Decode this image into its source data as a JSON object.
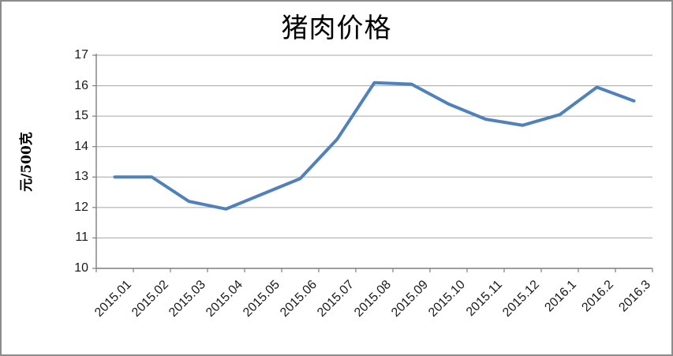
{
  "chart_data": {
    "type": "line",
    "title": "猪肉价格",
    "ylabel": "元/500克",
    "xlabel": "",
    "categories": [
      "2015.01",
      "2015.02",
      "2015.03",
      "2015.04",
      "2015.05",
      "2015.06",
      "2015.07",
      "2015.08",
      "2015.09",
      "2015.10",
      "2015.11",
      "2015.12",
      "2016.1",
      "2016.2",
      "2016.3"
    ],
    "values": [
      13.0,
      13.0,
      12.2,
      11.95,
      12.45,
      12.95,
      14.25,
      16.1,
      16.05,
      15.4,
      14.9,
      14.7,
      15.05,
      15.95,
      15.5
    ],
    "ylim": [
      10,
      17
    ],
    "yticks": [
      10,
      11,
      12,
      13,
      14,
      15,
      16,
      17
    ],
    "grid": true,
    "legend": "none",
    "colors": {
      "series": "#4F81BD",
      "gridline": "#A6A6A6",
      "axis": "#7F7F7F",
      "tick_text": "#1A1A1A",
      "title_text": "#000000",
      "frame_border": "#8C8C8C",
      "background": "#FFFFFF"
    }
  }
}
